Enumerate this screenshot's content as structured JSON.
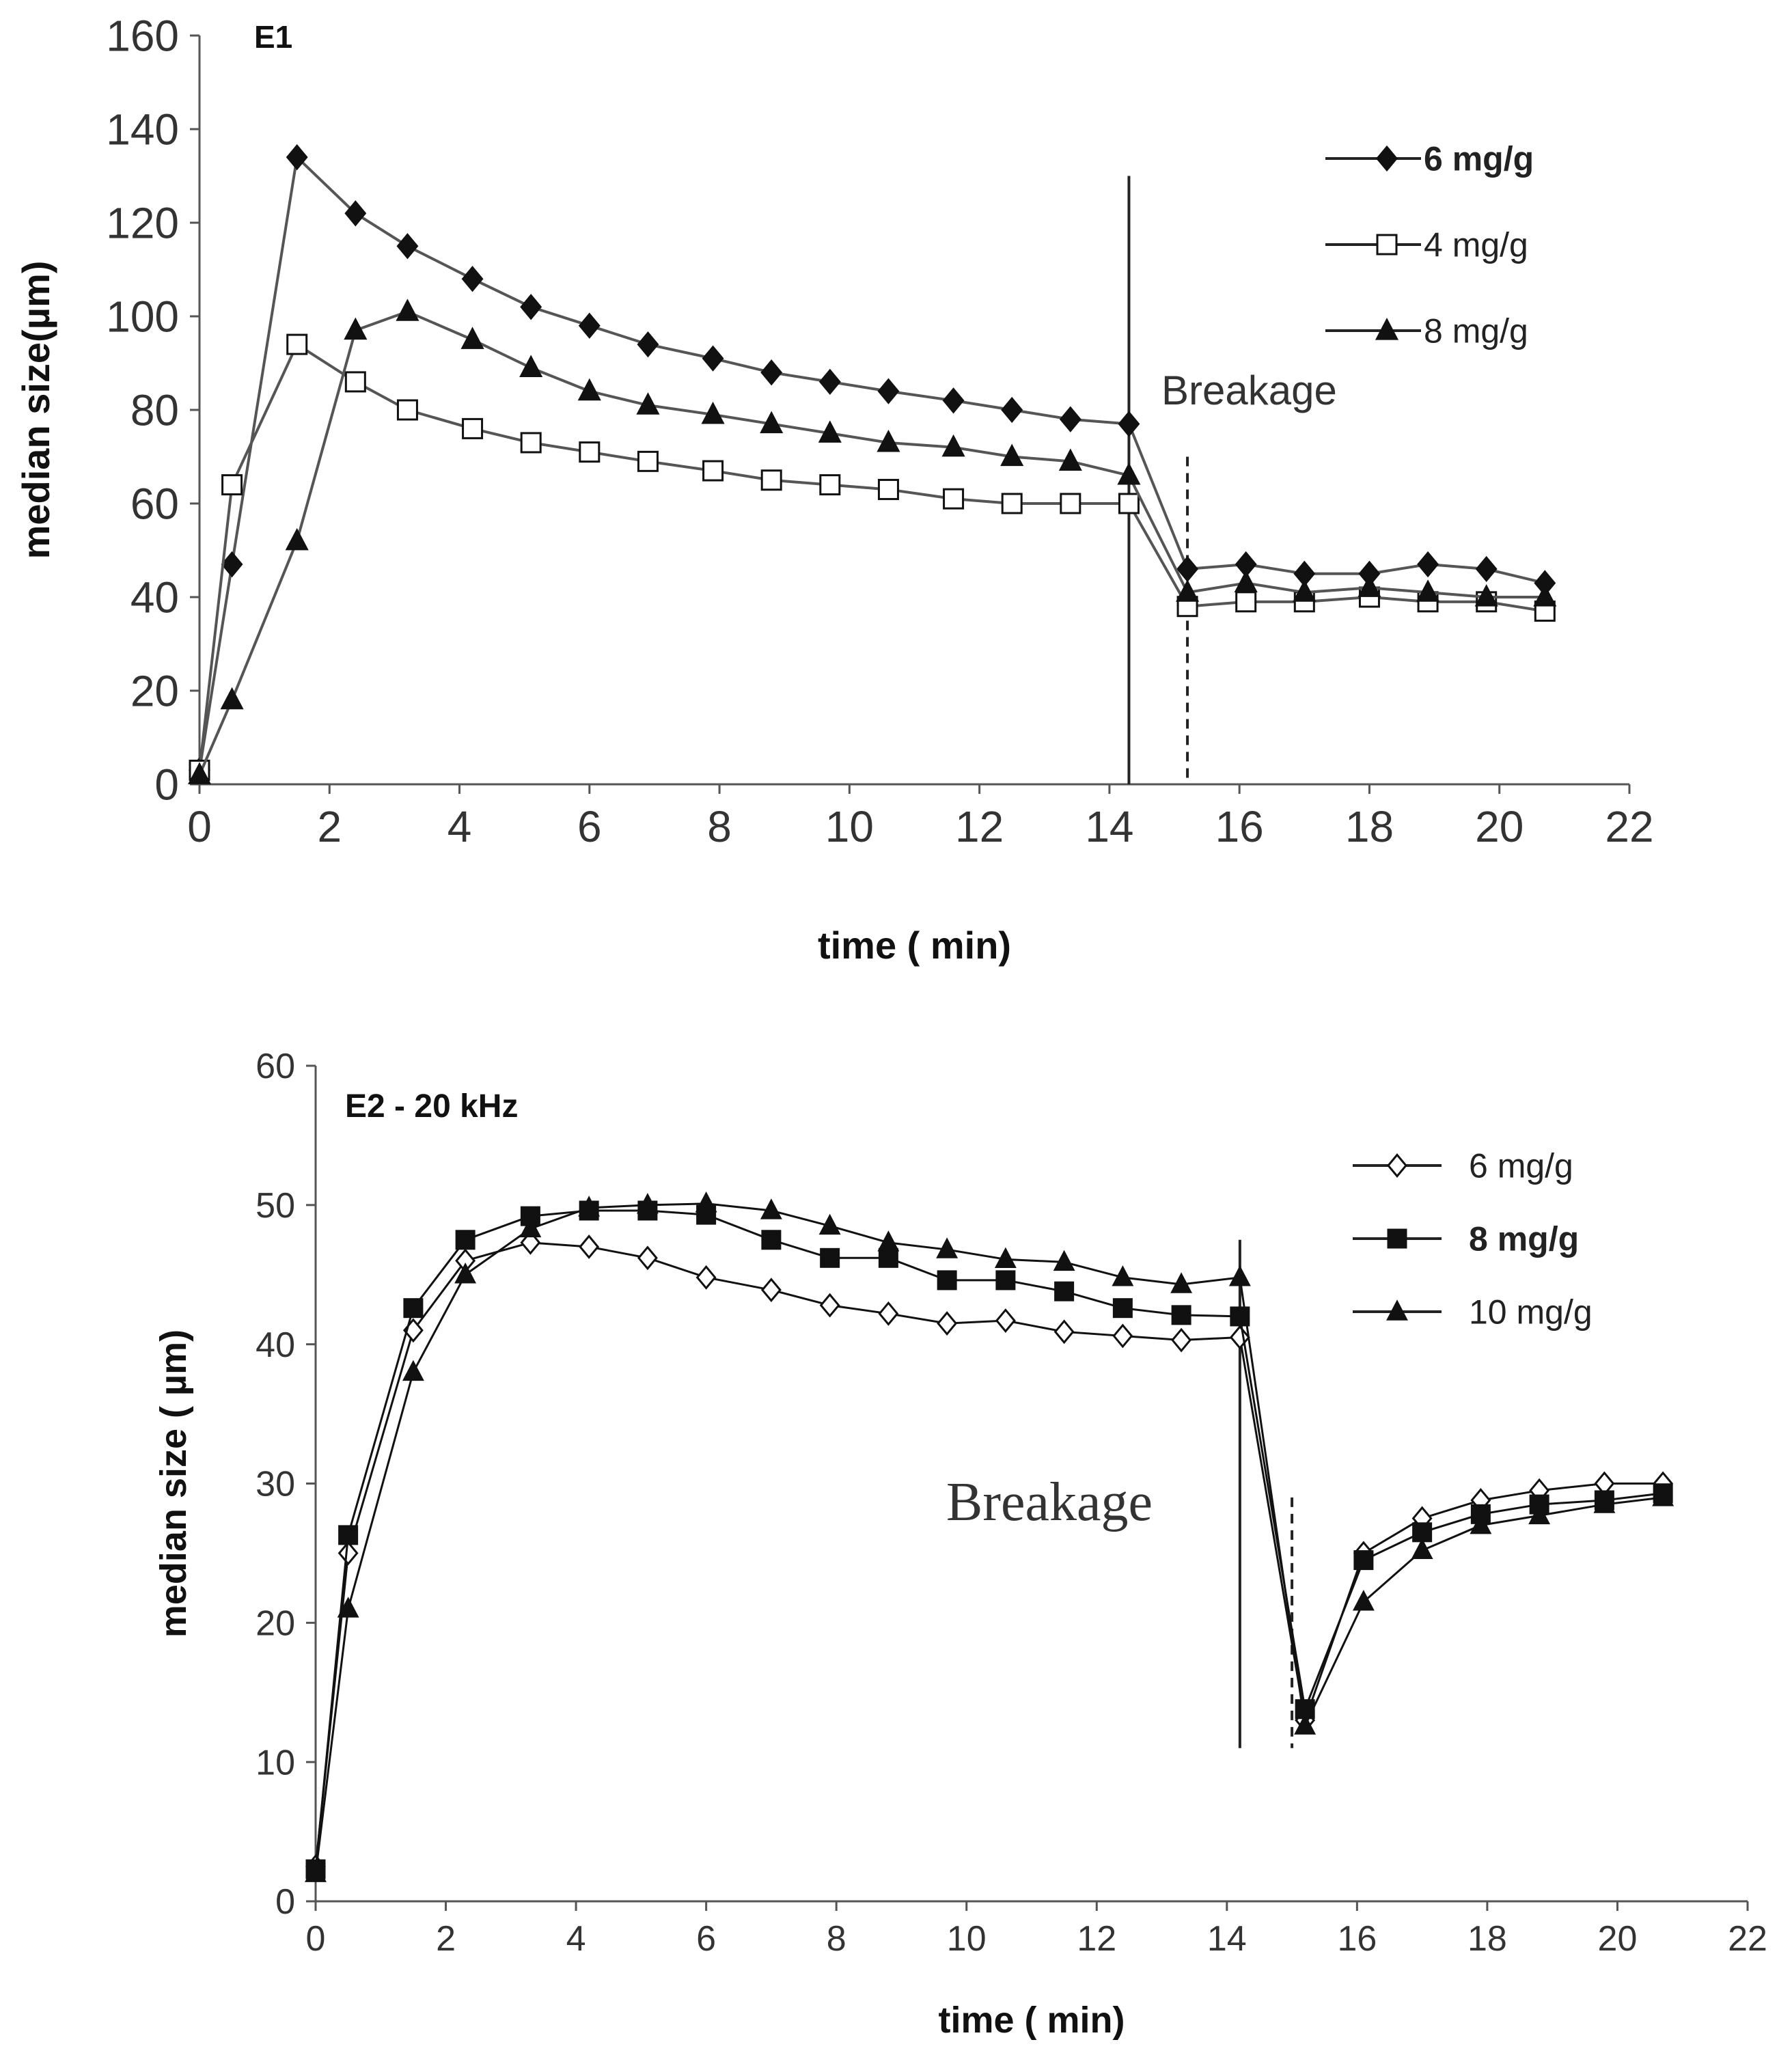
{
  "chart_data": [
    {
      "type": "line",
      "title": "E1",
      "xlabel": "time ( min)",
      "ylabel": "median size(µm)",
      "xlim": [
        0,
        22
      ],
      "ylim": [
        0,
        160
      ],
      "xticks": [
        "0",
        "2",
        "4",
        "6",
        "8",
        "10",
        "12",
        "14",
        "16",
        "18",
        "20",
        "22"
      ],
      "yticks": [
        "0",
        "20",
        "40",
        "60",
        "80",
        "100",
        "120",
        "140",
        "160"
      ],
      "annotation": "Breakage",
      "breakage_solid_x": 14.3,
      "breakage_dashed_x": 15.2,
      "series": [
        {
          "name": "6 mg/g",
          "marker": "diamond",
          "x": [
            0,
            0.5,
            1.5,
            2.4,
            3.2,
            4.2,
            5.1,
            6.0,
            6.9,
            7.9,
            8.8,
            9.7,
            10.6,
            11.6,
            12.5,
            13.4,
            14.3,
            15.2,
            16.1,
            17.0,
            18.0,
            18.9,
            19.8,
            20.7
          ],
          "values": [
            3,
            47,
            134,
            122,
            115,
            108,
            102,
            98,
            94,
            91,
            88,
            86,
            84,
            82,
            80,
            78,
            77,
            46,
            47,
            45,
            45,
            47,
            46,
            43
          ]
        },
        {
          "name": "4 mg/g",
          "marker": "open-square",
          "x": [
            0,
            0.5,
            1.5,
            2.4,
            3.2,
            4.2,
            5.1,
            6.0,
            6.9,
            7.9,
            8.8,
            9.7,
            10.6,
            11.6,
            12.5,
            13.4,
            14.3,
            15.2,
            16.1,
            17.0,
            18.0,
            18.9,
            19.8,
            20.7
          ],
          "values": [
            3,
            64,
            94,
            86,
            80,
            76,
            73,
            71,
            69,
            67,
            65,
            64,
            63,
            61,
            60,
            60,
            60,
            38,
            39,
            39,
            40,
            39,
            39,
            37
          ]
        },
        {
          "name": "8 mg/g",
          "marker": "triangle",
          "x": [
            0,
            0.5,
            1.5,
            2.4,
            3.2,
            4.2,
            5.1,
            6.0,
            6.9,
            7.9,
            8.8,
            9.7,
            10.6,
            11.6,
            12.5,
            13.4,
            14.3,
            15.2,
            16.1,
            17.0,
            18.0,
            18.9,
            19.8,
            20.7
          ],
          "values": [
            2,
            18,
            52,
            97,
            101,
            95,
            89,
            84,
            81,
            79,
            77,
            75,
            73,
            72,
            70,
            69,
            66,
            41,
            43,
            41,
            42,
            41,
            40,
            40
          ]
        }
      ]
    },
    {
      "type": "line",
      "title": "E2 - 20 kHz",
      "xlabel": "time ( min)",
      "ylabel": "median size ( µm)",
      "xlim": [
        0,
        22
      ],
      "ylim": [
        0,
        60
      ],
      "xticks": [
        "0",
        "2",
        "4",
        "6",
        "8",
        "10",
        "12",
        "14",
        "16",
        "18",
        "20",
        "22"
      ],
      "yticks": [
        "0",
        "10",
        "20",
        "30",
        "40",
        "50",
        "60"
      ],
      "annotation": "Breakage",
      "breakage_solid_x": 14.2,
      "breakage_dashed_x": 15.0,
      "series": [
        {
          "name": "6 mg/g",
          "marker": "open-diamond",
          "x": [
            0,
            0.5,
            1.5,
            2.3,
            3.3,
            4.2,
            5.1,
            6.0,
            7.0,
            7.9,
            8.8,
            9.7,
            10.6,
            11.5,
            12.4,
            13.3,
            14.2,
            15.2,
            16.1,
            17.0,
            17.9,
            18.8,
            19.8,
            20.7
          ],
          "values": [
            2.5,
            25,
            41,
            46,
            47.3,
            47,
            46.2,
            44.8,
            43.9,
            42.8,
            42.2,
            41.5,
            41.7,
            40.9,
            40.6,
            40.3,
            40.5,
            13,
            25,
            27.5,
            28.8,
            29.5,
            30,
            30
          ]
        },
        {
          "name": "8 mg/g",
          "marker": "square",
          "x": [
            0,
            0.5,
            1.5,
            2.3,
            3.3,
            4.2,
            5.1,
            6.0,
            7.0,
            7.9,
            8.8,
            9.7,
            10.6,
            11.5,
            12.4,
            13.3,
            14.2,
            15.2,
            16.1,
            17.0,
            17.9,
            18.8,
            19.8,
            20.7
          ],
          "values": [
            2.3,
            26.3,
            42.6,
            47.5,
            49.2,
            49.6,
            49.6,
            49.3,
            47.5,
            46.2,
            46.2,
            44.6,
            44.6,
            43.8,
            42.6,
            42.1,
            42,
            13.8,
            24.5,
            26.5,
            27.8,
            28.5,
            28.8,
            29.3
          ]
        },
        {
          "name": "10 mg/g",
          "marker": "triangle",
          "x": [
            0,
            0.5,
            1.5,
            2.3,
            3.3,
            4.2,
            5.1,
            6.0,
            7.0,
            7.9,
            8.8,
            9.7,
            10.6,
            11.5,
            12.4,
            13.3,
            14.2,
            15.2,
            16.1,
            17.0,
            17.9,
            18.8,
            19.8,
            20.7
          ],
          "values": [
            2,
            21,
            38,
            45,
            48.3,
            49.8,
            50,
            50.1,
            49.6,
            48.5,
            47.3,
            46.8,
            46.1,
            45.9,
            44.8,
            44.3,
            44.8,
            12.6,
            21.5,
            25.2,
            27,
            27.7,
            28.5,
            29
          ]
        }
      ]
    }
  ]
}
